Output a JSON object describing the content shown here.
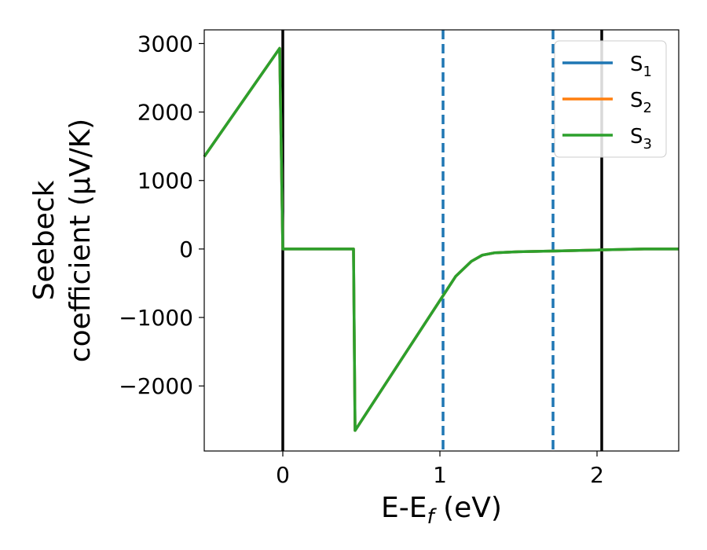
{
  "chart_data": {
    "type": "line",
    "xlabel": {
      "main": "E-E",
      "sub": "f",
      "unit": " (eV)"
    },
    "ylabel": {
      "line1": "Seebeck",
      "line2": "coefficient  (μV/K)"
    },
    "xlim": [
      -0.5,
      2.52
    ],
    "ylim": [
      -2950,
      3200
    ],
    "xticks": [
      0,
      1,
      2
    ],
    "xtick_labels": [
      "0",
      "1",
      "2"
    ],
    "yticks": [
      3000,
      2000,
      1000,
      0,
      -1000,
      -2000
    ],
    "ytick_labels": [
      "3000",
      "2000",
      "1000",
      "0",
      "−1000",
      "−2000"
    ],
    "grid": false,
    "legend_position": "top-right",
    "series": [
      {
        "name": "S",
        "sub": "1",
        "color": "#1f77b4",
        "x": [
          -0.5,
          -0.02,
          0.0,
          0.45,
          0.46,
          1.1,
          1.2,
          1.27,
          1.35,
          1.5,
          1.72,
          2.0,
          2.3,
          2.52
        ],
        "y": [
          1350,
          2930,
          0,
          0,
          -2650,
          -400,
          -180,
          -90,
          -55,
          -40,
          -30,
          -15,
          0,
          0
        ]
      },
      {
        "name": "S",
        "sub": "2",
        "color": "#ff7f0e",
        "x": [
          -0.5,
          -0.02,
          0.0,
          0.45,
          0.46,
          1.1,
          1.2,
          1.27,
          1.35,
          1.5,
          1.72,
          2.0,
          2.3,
          2.52
        ],
        "y": [
          1350,
          2930,
          0,
          0,
          -2650,
          -400,
          -180,
          -90,
          -55,
          -40,
          -30,
          -15,
          0,
          0
        ]
      },
      {
        "name": "S",
        "sub": "3",
        "color": "#2ca02c",
        "x": [
          -0.5,
          -0.02,
          0.0,
          0.45,
          0.46,
          1.1,
          1.2,
          1.27,
          1.35,
          1.5,
          1.72,
          2.0,
          2.3,
          2.52
        ],
        "y": [
          1350,
          2930,
          0,
          0,
          -2650,
          -400,
          -180,
          -90,
          -55,
          -40,
          -30,
          -15,
          0,
          0
        ]
      }
    ],
    "vertical_lines": [
      {
        "x": 0.0,
        "style": "solid",
        "color": "#000000"
      },
      {
        "x": 2.03,
        "style": "solid",
        "color": "#000000"
      },
      {
        "x": 1.02,
        "style": "dashed",
        "color": "#1f77b4"
      },
      {
        "x": 1.72,
        "style": "dashed",
        "color": "#1f77b4"
      }
    ]
  }
}
